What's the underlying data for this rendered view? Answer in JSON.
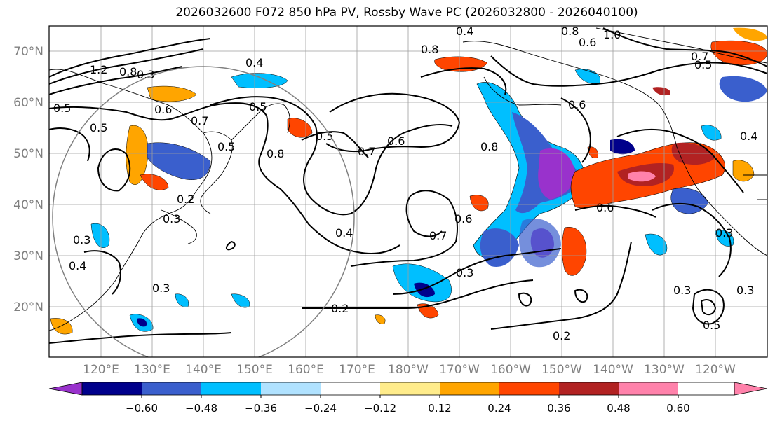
{
  "title": "2026032600 F072 850 hPa PV, Rossby Wave PC (2026032800 - 2026040100)",
  "lat_labels": [
    "70°N",
    "60°N",
    "50°N",
    "40°N",
    "30°N",
    "20°N"
  ],
  "lon_labels": [
    "120°E",
    "130°E",
    "140°E",
    "150°E",
    "160°E",
    "170°E",
    "180°W",
    "170°W",
    "160°W",
    "150°W",
    "140°W",
    "130°W",
    "120°W"
  ],
  "colorbar": {
    "ticks": [
      "−0.60",
      "−0.48",
      "−0.36",
      "−0.24",
      "−0.12",
      "0.12",
      "0.24",
      "0.36",
      "0.48",
      "0.60"
    ],
    "colors": [
      "#9932CC",
      "#00008B",
      "#3A5FCD",
      "#00BFFF",
      "#B0E2FF",
      "#FFFFFF",
      "#FFEC8B",
      "#FFA500",
      "#FF4500",
      "#B22222",
      "#FF82AB"
    ]
  },
  "contour_labels": [
    "0.4",
    "0.8",
    "1.0",
    "0.6",
    "0.8",
    "0.4",
    "1.2",
    "0.8",
    "0.3",
    "0.7",
    "0.5",
    "0.5",
    "0.6",
    "0.5",
    "0.5",
    "0.7",
    "0.6",
    "0.8",
    "0.6",
    "0.6",
    "0.7",
    "0.6",
    "0.4",
    "0.3",
    "0.2",
    "0.3",
    "0.3",
    "0.4",
    "0.3",
    "0.2",
    "0.2",
    "0.3",
    "0.5",
    "0.4",
    "0.3",
    "0.3",
    "0.5",
    "0.8",
    "0.7",
    "0.5"
  ]
}
